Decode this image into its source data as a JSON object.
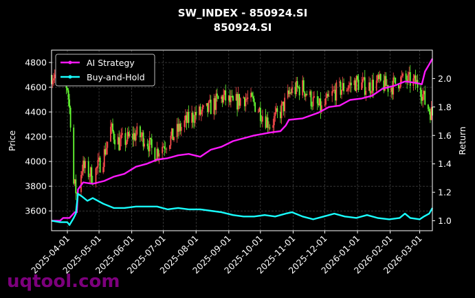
{
  "chart_data": {
    "type": "line",
    "title": "SW_INDEX - 850924.SI",
    "subtitle": "850924.SI",
    "ylabel": "Price",
    "y2label": "Return",
    "xlim": [
      "2025-03-17",
      "2026-03-13"
    ],
    "ylim": [
      3440,
      4900
    ],
    "y2lim": [
      0.93,
      2.2
    ],
    "x_ticks": [
      "2025-04-01",
      "2025-05-01",
      "2025-06-01",
      "2025-07-01",
      "2025-08-01",
      "2025-09-01",
      "2025-10-01",
      "2025-11-01",
      "2025-12-01",
      "2026-01-01",
      "2026-02-01",
      "2026-03-01"
    ],
    "y_ticks": [
      3600,
      3800,
      4000,
      4200,
      4400,
      4600,
      4800
    ],
    "y2_ticks": [
      1.0,
      1.2,
      1.4,
      1.6,
      1.8,
      2.0
    ],
    "grid": true,
    "legend_position": "top-left",
    "colors": {
      "up": "#ff4d4d",
      "down": "#66ff33",
      "ai": "#ff19ff",
      "bh": "#19ffff",
      "grid": "#555555"
    },
    "price_path": [
      [
        "2025-03-17",
        4700
      ],
      [
        "2025-03-25",
        4690
      ],
      [
        "2025-04-01",
        4600
      ],
      [
        "2025-04-04",
        4340
      ],
      [
        "2025-04-07",
        3820
      ],
      [
        "2025-04-10",
        3740
      ],
      [
        "2025-04-15",
        3960
      ],
      [
        "2025-04-25",
        3880
      ],
      [
        "2025-05-05",
        4030
      ],
      [
        "2025-05-12",
        4260
      ],
      [
        "2025-05-20",
        4150
      ],
      [
        "2025-05-28",
        4180
      ],
      [
        "2025-06-05",
        4220
      ],
      [
        "2025-06-15",
        4180
      ],
      [
        "2025-06-22",
        4060
      ],
      [
        "2025-06-30",
        4130
      ],
      [
        "2025-07-10",
        4200
      ],
      [
        "2025-07-20",
        4300
      ],
      [
        "2025-07-31",
        4380
      ],
      [
        "2025-08-10",
        4400
      ],
      [
        "2025-08-20",
        4480
      ],
      [
        "2025-08-27",
        4520
      ],
      [
        "2025-09-05",
        4460
      ],
      [
        "2025-09-15",
        4520
      ],
      [
        "2025-09-25",
        4470
      ],
      [
        "2025-10-10",
        4300
      ],
      [
        "2025-10-20",
        4400
      ],
      [
        "2025-10-30",
        4570
      ],
      [
        "2025-11-10",
        4600
      ],
      [
        "2025-11-20",
        4480
      ],
      [
        "2025-11-28",
        4420
      ],
      [
        "2025-12-10",
        4560
      ],
      [
        "2025-12-20",
        4600
      ],
      [
        "2025-12-31",
        4640
      ],
      [
        "2026-01-10",
        4600
      ],
      [
        "2026-01-20",
        4640
      ],
      [
        "2026-02-01",
        4600
      ],
      [
        "2026-02-10",
        4660
      ],
      [
        "2026-02-20",
        4650
      ],
      [
        "2026-03-01",
        4620
      ],
      [
        "2026-03-06",
        4480
      ],
      [
        "2026-03-13",
        4380
      ]
    ],
    "series": [
      {
        "name": "AI Strategy",
        "points": [
          [
            "2025-03-17",
            1.0
          ],
          [
            "2025-03-25",
            1.0
          ],
          [
            "2025-03-28",
            1.02
          ],
          [
            "2025-04-03",
            1.02
          ],
          [
            "2025-04-08",
            1.06
          ],
          [
            "2025-04-10",
            1.06
          ],
          [
            "2025-04-11",
            1.22
          ],
          [
            "2025-04-16",
            1.27
          ],
          [
            "2025-04-25",
            1.26
          ],
          [
            "2025-05-06",
            1.28
          ],
          [
            "2025-05-15",
            1.31
          ],
          [
            "2025-05-25",
            1.33
          ],
          [
            "2025-06-05",
            1.38
          ],
          [
            "2025-06-15",
            1.4
          ],
          [
            "2025-06-25",
            1.43
          ],
          [
            "2025-07-05",
            1.44
          ],
          [
            "2025-07-15",
            1.46
          ],
          [
            "2025-07-25",
            1.47
          ],
          [
            "2025-08-05",
            1.45
          ],
          [
            "2025-08-15",
            1.5
          ],
          [
            "2025-08-25",
            1.52
          ],
          [
            "2025-09-05",
            1.56
          ],
          [
            "2025-09-15",
            1.58
          ],
          [
            "2025-09-25",
            1.6
          ],
          [
            "2025-10-10",
            1.62
          ],
          [
            "2025-10-20",
            1.63
          ],
          [
            "2025-10-25",
            1.67
          ],
          [
            "2025-10-28",
            1.71
          ],
          [
            "2025-11-10",
            1.72
          ],
          [
            "2025-11-25",
            1.76
          ],
          [
            "2025-12-05",
            1.8
          ],
          [
            "2025-12-15",
            1.81
          ],
          [
            "2025-12-25",
            1.85
          ],
          [
            "2026-01-05",
            1.86
          ],
          [
            "2026-01-15",
            1.88
          ],
          [
            "2026-01-25",
            1.93
          ],
          [
            "2026-02-05",
            1.95
          ],
          [
            "2026-02-15",
            1.98
          ],
          [
            "2026-02-25",
            1.97
          ],
          [
            "2026-03-03",
            1.96
          ],
          [
            "2026-03-06",
            2.05
          ],
          [
            "2026-03-10",
            2.1
          ],
          [
            "2026-03-13",
            2.14
          ]
        ]
      },
      {
        "name": "Buy-and-Hold",
        "points": [
          [
            "2025-03-17",
            1.0
          ],
          [
            "2025-03-25",
            0.99
          ],
          [
            "2025-04-01",
            0.99
          ],
          [
            "2025-04-03",
            0.97
          ],
          [
            "2025-04-07",
            1.02
          ],
          [
            "2025-04-09",
            1.05
          ],
          [
            "2025-04-11",
            1.19
          ],
          [
            "2025-04-15",
            1.17
          ],
          [
            "2025-04-20",
            1.14
          ],
          [
            "2025-04-25",
            1.16
          ],
          [
            "2025-05-05",
            1.12
          ],
          [
            "2025-05-15",
            1.09
          ],
          [
            "2025-05-25",
            1.09
          ],
          [
            "2025-06-05",
            1.1
          ],
          [
            "2025-06-15",
            1.1
          ],
          [
            "2025-06-25",
            1.1
          ],
          [
            "2025-07-05",
            1.08
          ],
          [
            "2025-07-15",
            1.09
          ],
          [
            "2025-07-25",
            1.08
          ],
          [
            "2025-08-05",
            1.08
          ],
          [
            "2025-08-15",
            1.07
          ],
          [
            "2025-08-25",
            1.06
          ],
          [
            "2025-09-05",
            1.04
          ],
          [
            "2025-09-15",
            1.03
          ],
          [
            "2025-09-25",
            1.03
          ],
          [
            "2025-10-05",
            1.04
          ],
          [
            "2025-10-15",
            1.03
          ],
          [
            "2025-10-25",
            1.05
          ],
          [
            "2025-10-31",
            1.06
          ],
          [
            "2025-11-10",
            1.03
          ],
          [
            "2025-11-20",
            1.01
          ],
          [
            "2025-11-30",
            1.03
          ],
          [
            "2025-12-10",
            1.05
          ],
          [
            "2025-12-20",
            1.03
          ],
          [
            "2025-12-31",
            1.02
          ],
          [
            "2026-01-10",
            1.04
          ],
          [
            "2026-01-20",
            1.02
          ],
          [
            "2026-01-31",
            1.01
          ],
          [
            "2026-02-10",
            1.02
          ],
          [
            "2026-02-15",
            1.05
          ],
          [
            "2026-02-20",
            1.02
          ],
          [
            "2026-03-01",
            1.01
          ],
          [
            "2026-03-05",
            1.03
          ],
          [
            "2026-03-10",
            1.05
          ],
          [
            "2026-03-13",
            1.09
          ]
        ]
      }
    ]
  },
  "watermark": "uqtool.com"
}
